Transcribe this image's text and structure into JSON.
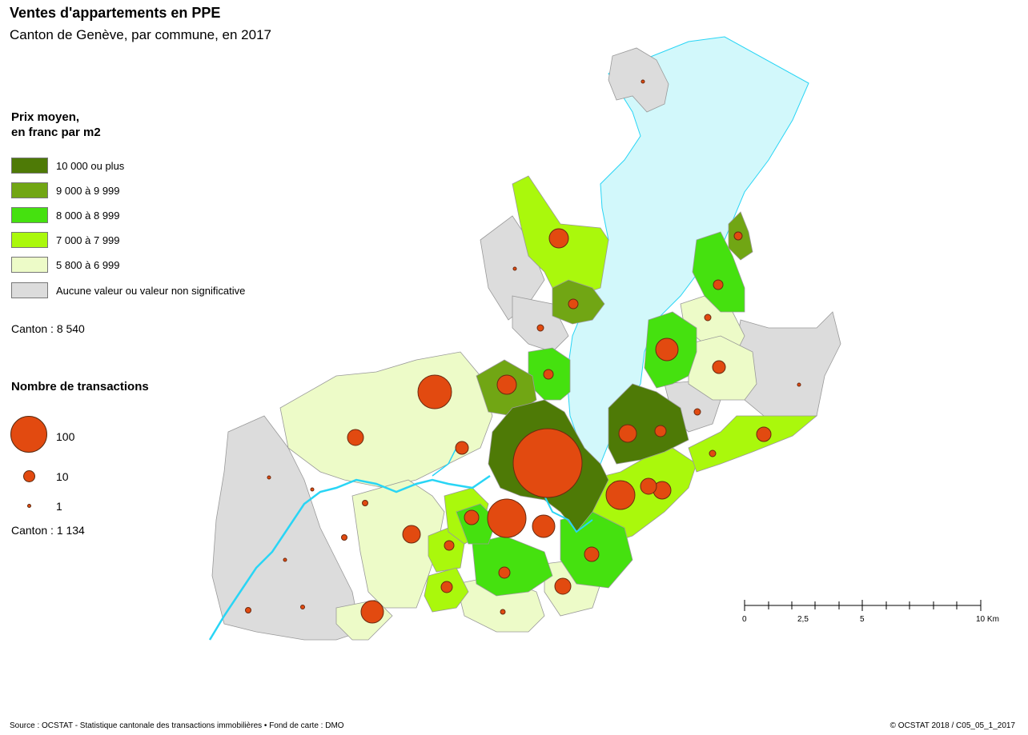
{
  "title": "Ventes d'appartements en PPE",
  "subtitle": "Canton de Genève, par commune, en 2017",
  "price_legend": {
    "title_line1": "Prix moyen,",
    "title_line2": "en franc par m2",
    "classes": [
      {
        "label": "10 000 ou plus",
        "color": "#4e7a06"
      },
      {
        "label": "9 000 à 9 999",
        "color": "#71a614"
      },
      {
        "label": "8 000 à 8 999",
        "color": "#45e10f"
      },
      {
        "label": "7 000 à 7 999",
        "color": "#aaf80c"
      },
      {
        "label": "5 800 à 6 999",
        "color": "#edfbc8"
      },
      {
        "label": "Aucune valeur ou valeur non significative",
        "color": "#dcdcdc"
      }
    ],
    "canton": "Canton : 8 540"
  },
  "size_legend": {
    "title": "Nombre de transactions",
    "items": [
      {
        "label": "100",
        "value": 100
      },
      {
        "label": "10",
        "value": 10
      },
      {
        "label": "1",
        "value": 1
      }
    ],
    "canton": "Canton : 1 134"
  },
  "lake_color": "#d2f8fb",
  "river_color": "#29d5f5",
  "bubble_color": "#e24a10",
  "scale_bar": {
    "labels": [
      "0",
      "2,5",
      "5",
      "10 Km"
    ]
  },
  "source": "Source : OCSTAT - Statistique cantonale des transactions immobilières • Fond de carte : DMO",
  "copyright": "© OCSTAT 2018 / C05_05_1_2017"
}
